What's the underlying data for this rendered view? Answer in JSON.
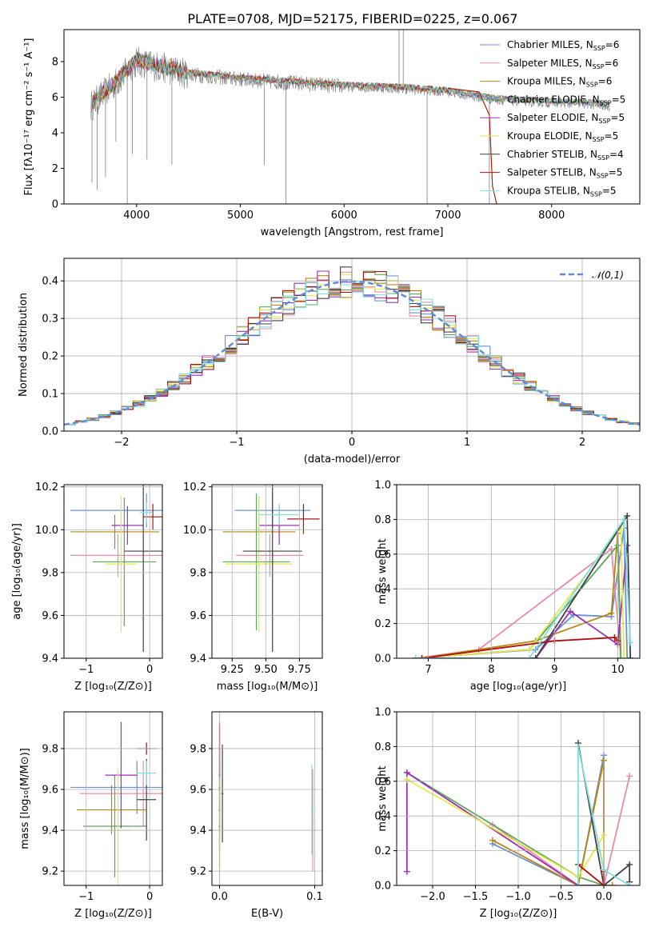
{
  "figure_title": "PLATE=0708, MJD=52175, FIBERID=0225, z=0.067",
  "models": [
    {
      "label": "Chabrier MILES, N",
      "sub": "SSP",
      "suffix": "=6",
      "color": "#6a8fd8"
    },
    {
      "label": "Salpeter MILES, N",
      "sub": "SSP",
      "suffix": "=6",
      "color": "#e98ab0"
    },
    {
      "label": "Kroupa MILES, N",
      "sub": "SSP",
      "suffix": "=6",
      "color": "#b8860b"
    },
    {
      "label": "Chabrier ELODIE, N",
      "sub": "SSP",
      "suffix": "=5",
      "color": "#5ba85b"
    },
    {
      "label": "Salpeter ELODIE, N",
      "sub": "SSP",
      "suffix": "=5",
      "color": "#9b30b5"
    },
    {
      "label": "Kroupa ELODIE, N",
      "sub": "SSP",
      "suffix": "=5",
      "color": "#e6e84c"
    },
    {
      "label": "Chabrier STELIB, N",
      "sub": "SSP",
      "suffix": "=4",
      "color": "#404040"
    },
    {
      "label": "Salpeter STELIB, N",
      "sub": "SSP",
      "suffix": "=5",
      "color": "#b01010"
    },
    {
      "label": "Kroupa STELIB, N",
      "sub": "SSP",
      "suffix": "=5",
      "color": "#7fe0e0"
    }
  ],
  "chart_data": [
    {
      "type": "line",
      "title": "PLATE=0708, MJD=52175, FIBERID=0225, z=0.067",
      "xlabel": "wavelength [Angstrom, rest frame]",
      "ylabel": "Flux [fλ10⁻¹⁷ erg cm⁻² s⁻¹ A⁻¹]",
      "xlim": [
        3300,
        8850
      ],
      "ylim": [
        0,
        9.8
      ],
      "xticks": [
        "4000",
        "5000",
        "6000",
        "7000",
        "8000"
      ],
      "yticks": [
        "0",
        "2",
        "4",
        "6",
        "8"
      ],
      "legend_position": "upper-right",
      "data_color": "#808080",
      "continuum": {
        "x": [
          3560,
          3800,
          4000,
          4500,
          5000,
          5500,
          6000,
          6500,
          7000,
          7400,
          7600,
          8000,
          8400,
          8560
        ],
        "y": [
          5.5,
          6.8,
          8.0,
          7.3,
          7.0,
          6.8,
          6.6,
          6.5,
          6.3,
          5.9,
          5.8,
          5.7,
          5.6,
          5.5
        ]
      },
      "spikes": [
        {
          "x": 3570,
          "y": 1.2
        },
        {
          "x": 3620,
          "y": 0.8
        },
        {
          "x": 3700,
          "y": 1.5
        },
        {
          "x": 3800,
          "y": 3.5
        },
        {
          "x": 3910,
          "y": 0.0
        },
        {
          "x": 3960,
          "y": 2.8
        },
        {
          "x": 4100,
          "y": 2.5
        },
        {
          "x": 4340,
          "y": 2.2
        },
        {
          "x": 5230,
          "y": 2.2
        },
        {
          "x": 5440,
          "y": 0.0
        },
        {
          "x": 6530,
          "y": 9.8
        },
        {
          "x": 6570,
          "y": 9.8
        },
        {
          "x": 6800,
          "y": 0.0
        },
        {
          "x": 7400,
          "y": 0.0
        }
      ],
      "series_tail": {
        "x": [
          7000,
          7300,
          7400,
          7430,
          7470
        ],
        "y": [
          6.5,
          6.3,
          5.0,
          1.0,
          0.0
        ]
      }
    },
    {
      "type": "bar",
      "xlabel": "(data-model)/error",
      "ylabel": "Normed distribution",
      "xlim": [
        -2.5,
        2.5
      ],
      "ylim": [
        0,
        0.46
      ],
      "xticks": [
        "−2",
        "−1",
        "0",
        "1",
        "2"
      ],
      "yticks": [
        "0.0",
        "0.1",
        "0.2",
        "0.3",
        "0.4"
      ],
      "legend": "𝒩(0,1)",
      "legend_position": "upper-right",
      "gaussian_color": "#5b8bd8",
      "bin_width": 0.1
    },
    {
      "type": "scatter",
      "xlabel": "Z [log₁₀(Z/Z⊙)]",
      "ylabel": "age  [log₁₀(age/yr)]",
      "xlim": [
        -1.35,
        0.2
      ],
      "ylim": [
        9.4,
        10.21
      ],
      "xticks": [
        "−1",
        "0"
      ],
      "yticks": [
        "9.4",
        "9.6",
        "9.8",
        "10.0",
        "10.2"
      ],
      "points": [
        {
          "x": -0.05,
          "y": 10.09,
          "xe": 1.2,
          "ye": 0.08,
          "c": 0
        },
        {
          "x": -0.5,
          "y": 9.88,
          "xe": 0.75,
          "ye": 0.1,
          "c": 1
        },
        {
          "x": -0.55,
          "y": 9.99,
          "xe": 0.7,
          "ye": 0.08,
          "c": 2
        },
        {
          "x": -0.4,
          "y": 9.85,
          "xe": 0.5,
          "ye": 0.3,
          "c": 3
        },
        {
          "x": -0.35,
          "y": 10.02,
          "xe": 0.25,
          "ye": 0.09,
          "c": 4
        },
        {
          "x": -0.45,
          "y": 9.84,
          "xe": 0.25,
          "ye": 0.32,
          "c": 5
        },
        {
          "x": -0.1,
          "y": 9.9,
          "xe": 0.3,
          "ye": 0.47,
          "c": 6
        },
        {
          "x": 0.05,
          "y": 10.06,
          "xe": 0.15,
          "ye": 0.06,
          "c": 7
        },
        {
          "x": -0.05,
          "y": 10.08,
          "xe": 0.1,
          "ye": 0.05,
          "c": 8
        }
      ]
    },
    {
      "type": "scatter",
      "xlabel": "mass [log₁₀(M/M⊙)]",
      "ylabel": "",
      "xlim": [
        9.1,
        9.92
      ],
      "ylim": [
        9.4,
        10.21
      ],
      "xticks": [
        "9.25",
        "9.50",
        "9.75"
      ],
      "yticks": [
        "9.4",
        "9.6",
        "9.8",
        "10.0",
        "10.2"
      ],
      "points": [
        {
          "x": 9.55,
          "y": 10.09,
          "xe": 0.28,
          "ye": 0.08,
          "c": 0
        },
        {
          "x": 9.53,
          "y": 9.88,
          "xe": 0.25,
          "ye": 0.1,
          "c": 1
        },
        {
          "x": 9.45,
          "y": 9.99,
          "xe": 0.27,
          "ye": 0.16,
          "c": 2
        },
        {
          "x": 9.43,
          "y": 9.85,
          "xe": 0.25,
          "ye": 0.32,
          "c": 3
        },
        {
          "x": 9.6,
          "y": 10.02,
          "xe": 0.15,
          "ye": 0.09,
          "c": 4
        },
        {
          "x": 9.45,
          "y": 9.84,
          "xe": 0.25,
          "ye": 0.32,
          "c": 5
        },
        {
          "x": 9.55,
          "y": 9.9,
          "xe": 0.22,
          "ye": 0.47,
          "c": 6
        },
        {
          "x": 9.78,
          "y": 10.05,
          "xe": 0.12,
          "ye": 0.07,
          "c": 7
        },
        {
          "x": 9.6,
          "y": 10.07,
          "xe": 0.15,
          "ye": 0.05,
          "c": 8
        }
      ]
    },
    {
      "type": "line",
      "xlabel": "age  [log₁₀(age/yr)]",
      "ylabel": "mass weight",
      "xlim": [
        6.5,
        10.35
      ],
      "ylim": [
        0,
        1.0
      ],
      "xticks": [
        "7",
        "8",
        "9",
        "10"
      ],
      "yticks": [
        "0.0",
        "0.2",
        "0.4",
        "0.6",
        "0.8",
        "1.0"
      ],
      "series": [
        {
          "c": 0,
          "x": [
            6.8,
            8.7,
            9.3,
            9.9,
            10.1,
            10.15
          ],
          "y": [
            0.0,
            0.05,
            0.25,
            0.24,
            0.75,
            0.0
          ]
        },
        {
          "c": 1,
          "x": [
            6.8,
            7.8,
            9.9,
            10.05
          ],
          "y": [
            0.0,
            0.05,
            0.63,
            0.0
          ]
        },
        {
          "c": 2,
          "x": [
            6.9,
            8.7,
            9.9,
            10.0,
            10.05
          ],
          "y": [
            0.0,
            0.1,
            0.26,
            0.72,
            0.0
          ]
        },
        {
          "c": 3,
          "x": [
            6.8,
            8.6,
            10.0,
            10.05
          ],
          "y": [
            0.0,
            0.05,
            0.65,
            0.0
          ]
        },
        {
          "c": 4,
          "x": [
            6.8,
            8.7,
            9.25,
            10.0,
            10.15
          ],
          "y": [
            0.0,
            0.0,
            0.27,
            0.08,
            0.65
          ]
        },
        {
          "c": 5,
          "x": [
            6.8,
            8.6,
            10.05,
            10.1
          ],
          "y": [
            0.0,
            0.05,
            0.75,
            0.0
          ]
        },
        {
          "c": 6,
          "x": [
            6.8,
            8.7,
            10.15,
            10.2
          ],
          "y": [
            0.0,
            0.0,
            0.82,
            0.0
          ]
        },
        {
          "c": 7,
          "x": [
            6.9,
            9.0,
            9.95,
            10.0
          ],
          "y": [
            0.0,
            0.1,
            0.12,
            0.1
          ]
        },
        {
          "c": 8,
          "x": [
            6.8,
            8.6,
            10.1,
            10.2
          ],
          "y": [
            0.0,
            0.0,
            0.8,
            0.09
          ]
        }
      ]
    },
    {
      "type": "scatter",
      "xlabel": "Z [log₁₀(Z/Z⊙)]",
      "ylabel": "mass [log₁₀(M/M⊙)]",
      "xlim": [
        -1.35,
        0.2
      ],
      "ylim": [
        9.13,
        9.98
      ],
      "xticks": [
        "−1",
        "0"
      ],
      "yticks": [
        "9.2",
        "9.4",
        "9.6",
        "9.8"
      ],
      "points": [
        {
          "x": -0.2,
          "y": 9.61,
          "xe": 1.05,
          "ye": 0.13,
          "c": 0
        },
        {
          "x": -0.1,
          "y": 9.58,
          "xe": 1.0,
          "ye": 0.16,
          "c": 1
        },
        {
          "x": -0.6,
          "y": 9.5,
          "xe": 0.55,
          "ye": 0.12,
          "c": 2
        },
        {
          "x": -0.55,
          "y": 9.42,
          "xe": 0.5,
          "ye": 0.25,
          "c": 3
        },
        {
          "x": -0.45,
          "y": 9.67,
          "xe": 0.25,
          "ye": 0.26,
          "c": 4
        },
        {
          "x": -0.5,
          "y": 9.4,
          "xe": 0.2,
          "ye": 0.3,
          "c": 5
        },
        {
          "x": -0.05,
          "y": 9.55,
          "xe": 0.15,
          "ye": 0.2,
          "c": 6
        },
        {
          "x": -0.05,
          "y": 9.8,
          "xe": 0.15,
          "ye": 0.03,
          "c": 7
        },
        {
          "x": -0.05,
          "y": 9.68,
          "xe": 0.15,
          "ye": 0.06,
          "c": 8
        }
      ]
    },
    {
      "type": "scatter",
      "xlabel": "E(B-V)",
      "ylabel": "",
      "xlim": [
        -0.008,
        0.108
      ],
      "ylim": [
        9.13,
        9.98
      ],
      "xticks": [
        "0.0",
        "0.1"
      ],
      "yticks": [
        "9.2",
        "9.4",
        "9.6",
        "9.8"
      ],
      "points": [
        {
          "x": 0.0,
          "y": 9.61,
          "xe": 0.001,
          "ye": 0.13,
          "c": 0
        },
        {
          "x": 0.098,
          "y": 9.45,
          "xe": 0.001,
          "ye": 0.25,
          "c": 1
        },
        {
          "x": 0.0,
          "y": 9.5,
          "xe": 0.001,
          "ye": 0.2,
          "c": 2
        },
        {
          "x": 0.0,
          "y": 9.42,
          "xe": 0.001,
          "ye": 0.2,
          "c": 3
        },
        {
          "x": 0.0,
          "y": 9.67,
          "xe": 0.001,
          "ye": 0.26,
          "c": 4
        },
        {
          "x": 0.0,
          "y": 9.4,
          "xe": 0.001,
          "ye": 0.25,
          "c": 5
        },
        {
          "x": 0.003,
          "y": 9.58,
          "xe": 0.001,
          "ye": 0.24,
          "c": 6
        },
        {
          "x": 0.0,
          "y": 9.8,
          "xe": 0.001,
          "ye": 0.12,
          "c": 7
        },
        {
          "x": 0.097,
          "y": 9.5,
          "xe": 0.001,
          "ye": 0.22,
          "c": 8
        }
      ]
    },
    {
      "type": "line",
      "xlabel": "Z [log₁₀(Z/Z⊙)]",
      "ylabel": "mass weight",
      "xlim": [
        -2.42,
        0.42
      ],
      "ylim": [
        0,
        1.0
      ],
      "xticks": [
        "−2.0",
        "−1.5",
        "−1.0",
        "−0.5",
        "0.0"
      ],
      "yticks": [
        "0.0",
        "0.2",
        "0.4",
        "0.6",
        "0.8",
        "1.0"
      ],
      "series": [
        {
          "c": 0,
          "x": [
            -1.3,
            -0.3,
            0.0,
            0.0,
            0.1
          ],
          "y": [
            0.24,
            0.0,
            0.75,
            0.0,
            0.0
          ]
        },
        {
          "c": 1,
          "x": [
            -1.3,
            -0.3,
            0.0,
            0.3
          ],
          "y": [
            0.35,
            0.0,
            0.0,
            0.63
          ]
        },
        {
          "c": 2,
          "x": [
            -1.3,
            -0.3,
            0.0,
            0.0,
            0.1
          ],
          "y": [
            0.26,
            0.0,
            0.72,
            0.0,
            0.0
          ]
        },
        {
          "c": 3,
          "x": [
            -2.3,
            -0.3,
            0.0
          ],
          "y": [
            0.65,
            0.05,
            0.0
          ]
        },
        {
          "c": 4,
          "x": [
            -2.3,
            -2.3,
            -0.3,
            0.0
          ],
          "y": [
            0.08,
            0.65,
            0.0,
            0.0
          ]
        },
        {
          "c": 5,
          "x": [
            -2.3,
            -0.3,
            0.0,
            0.0
          ],
          "y": [
            0.61,
            0.05,
            0.29,
            0.0
          ]
        },
        {
          "c": 6,
          "x": [
            -0.3,
            0.0,
            0.3,
            0.3
          ],
          "y": [
            0.82,
            0.0,
            0.12,
            0.02
          ]
        },
        {
          "c": 7,
          "x": [
            -0.3,
            0.0,
            0.0
          ],
          "y": [
            0.12,
            0.0,
            0.08
          ]
        },
        {
          "c": 8,
          "x": [
            -0.3,
            -0.3,
            0.0,
            0.3
          ],
          "y": [
            0.0,
            0.8,
            0.09,
            0.0
          ]
        }
      ]
    }
  ]
}
